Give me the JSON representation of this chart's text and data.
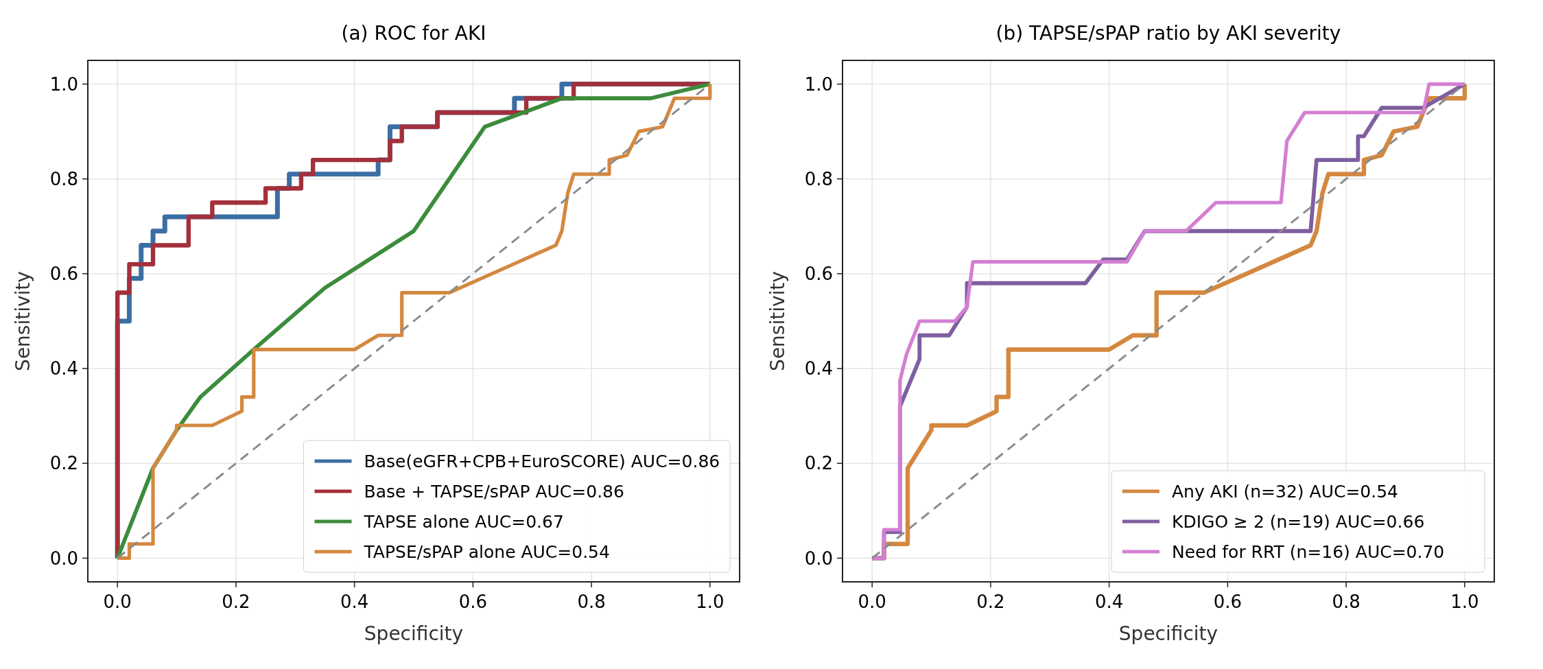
{
  "chart_data": [
    {
      "type": "line",
      "title": "(a)  ROC for AKI",
      "xlabel": "Specificity",
      "ylabel": "Sensitivity",
      "xlim": [
        -0.05,
        1.05
      ],
      "ylim": [
        -0.05,
        1.05
      ],
      "xticks": [
        {
          "value": 0,
          "label": "0.0"
        },
        {
          "value": 0.2,
          "label": "0.2"
        },
        {
          "value": 0.4,
          "label": "0.4"
        },
        {
          "value": 0.6,
          "label": "0.6"
        },
        {
          "value": 0.8,
          "label": "0.8"
        },
        {
          "value": 1,
          "label": "1.0"
        }
      ],
      "yticks": [
        {
          "value": 0,
          "label": "0.0"
        },
        {
          "value": 0.2,
          "label": "0.2"
        },
        {
          "value": 0.4,
          "label": "0.4"
        },
        {
          "value": 0.6,
          "label": "0.6"
        },
        {
          "value": 0.8,
          "label": "0.8"
        },
        {
          "value": 1,
          "label": "1.0"
        }
      ],
      "grid": true,
      "legend": "bottom right",
      "marker": "none",
      "series": [
        {
          "name": "Base(eGFR+CPB+EuroSCORE) AUC=0.86",
          "color": "#3b6ea5",
          "x": [
            0,
            0,
            0.02,
            0.02,
            0.04,
            0.04,
            0.06,
            0.06,
            0.08,
            0.08,
            0.27,
            0.27,
            0.29,
            0.29,
            0.44,
            0.44,
            0.46,
            0.46,
            0.54,
            0.54,
            0.67,
            0.67,
            0.75,
            0.75,
            1
          ],
          "values": [
            0,
            0.5,
            0.5,
            0.59,
            0.59,
            0.66,
            0.66,
            0.69,
            0.69,
            0.72,
            0.72,
            0.78,
            0.78,
            0.81,
            0.81,
            0.84,
            0.84,
            0.91,
            0.91,
            0.94,
            0.94,
            0.97,
            0.97,
            1,
            1
          ]
        },
        {
          "name": "Base + TAPSE/sPAP AUC=0.86",
          "color": "#a3303c",
          "x": [
            0,
            0,
            0.02,
            0.02,
            0.06,
            0.06,
            0.12,
            0.12,
            0.16,
            0.16,
            0.25,
            0.25,
            0.31,
            0.31,
            0.33,
            0.33,
            0.46,
            0.46,
            0.48,
            0.48,
            0.54,
            0.54,
            0.69,
            0.69,
            0.77,
            0.77,
            1
          ],
          "values": [
            0,
            0.56,
            0.56,
            0.62,
            0.62,
            0.66,
            0.66,
            0.72,
            0.72,
            0.75,
            0.75,
            0.78,
            0.78,
            0.81,
            0.81,
            0.84,
            0.84,
            0.88,
            0.88,
            0.91,
            0.91,
            0.94,
            0.94,
            0.97,
            0.97,
            1,
            1
          ]
        },
        {
          "name": "TAPSE alone AUC=0.67",
          "color": "#3b8c3b",
          "x": [
            0,
            0.06,
            0.1,
            0.14,
            0.23,
            0.35,
            0.5,
            0.62,
            0.75,
            0.9,
            1
          ],
          "values": [
            0,
            0.19,
            0.27,
            0.34,
            0.44,
            0.57,
            0.69,
            0.91,
            0.97,
            0.97,
            1
          ]
        },
        {
          "name": "TAPSE/sPAP alone AUC=0.54",
          "color": "#d4883f",
          "x": [
            0,
            0.02,
            0.02,
            0.06,
            0.06,
            0.1,
            0.1,
            0.16,
            0.21,
            0.21,
            0.23,
            0.23,
            0.4,
            0.44,
            0.48,
            0.48,
            0.56,
            0.74,
            0.75,
            0.76,
            0.77,
            0.83,
            0.83,
            0.86,
            0.88,
            0.92,
            0.93,
            0.94,
            1,
            1
          ],
          "values": [
            0,
            0,
            0.03,
            0.03,
            0.19,
            0.27,
            0.28,
            0.28,
            0.31,
            0.34,
            0.34,
            0.44,
            0.44,
            0.47,
            0.47,
            0.56,
            0.56,
            0.66,
            0.69,
            0.77,
            0.81,
            0.81,
            0.84,
            0.85,
            0.9,
            0.91,
            0.94,
            0.97,
            0.97,
            1
          ]
        },
        {
          "color": "#8c8c8c",
          "line_style": "dashed",
          "x": [
            0,
            1
          ],
          "values": [
            0,
            1
          ]
        }
      ]
    },
    {
      "type": "line",
      "title": "(b)  TAPSE/sPAP ratio by AKI severity",
      "xlabel": "Specificity",
      "ylabel": "Sensitivity",
      "xlim": [
        -0.05,
        1.05
      ],
      "ylim": [
        -0.05,
        1.05
      ],
      "xticks": [
        {
          "value": 0,
          "label": "0.0"
        },
        {
          "value": 0.2,
          "label": "0.2"
        },
        {
          "value": 0.4,
          "label": "0.4"
        },
        {
          "value": 0.6,
          "label": "0.6"
        },
        {
          "value": 0.8,
          "label": "0.8"
        },
        {
          "value": 1,
          "label": "1.0"
        }
      ],
      "yticks": [
        {
          "value": 0,
          "label": "0.0"
        },
        {
          "value": 0.2,
          "label": "0.2"
        },
        {
          "value": 0.4,
          "label": "0.4"
        },
        {
          "value": 0.6,
          "label": "0.6"
        },
        {
          "value": 0.8,
          "label": "0.8"
        },
        {
          "value": 1,
          "label": "1.0"
        }
      ],
      "grid": true,
      "legend": "bottom right",
      "marker": "none",
      "series": [
        {
          "name": "Any AKI (n=32) AUC=0.54",
          "color": "#d4883f",
          "x": [
            0,
            0.02,
            0.02,
            0.06,
            0.06,
            0.1,
            0.1,
            0.16,
            0.21,
            0.21,
            0.23,
            0.23,
            0.4,
            0.44,
            0.48,
            0.48,
            0.56,
            0.74,
            0.75,
            0.76,
            0.77,
            0.83,
            0.83,
            0.86,
            0.88,
            0.92,
            0.93,
            0.94,
            1,
            1
          ],
          "values": [
            0,
            0,
            0.03,
            0.03,
            0.19,
            0.27,
            0.28,
            0.28,
            0.31,
            0.34,
            0.34,
            0.44,
            0.44,
            0.47,
            0.47,
            0.56,
            0.56,
            0.66,
            0.69,
            0.77,
            0.81,
            0.81,
            0.84,
            0.85,
            0.9,
            0.91,
            0.94,
            0.97,
            0.97,
            1
          ]
        },
        {
          "name": "KDIGO ≥ 2 (n=19) AUC=0.66",
          "color": "#7e5fa0",
          "x": [
            0,
            0.02,
            0.02,
            0.047,
            0.047,
            0.08,
            0.08,
            0.13,
            0.16,
            0.16,
            0.36,
            0.39,
            0.43,
            0.46,
            0.74,
            0.75,
            0.82,
            0.82,
            0.83,
            0.86,
            0.93,
            1
          ],
          "values": [
            0,
            0,
            0.055,
            0.055,
            0.32,
            0.42,
            0.47,
            0.47,
            0.53,
            0.58,
            0.58,
            0.63,
            0.63,
            0.69,
            0.69,
            0.84,
            0.84,
            0.89,
            0.89,
            0.95,
            0.95,
            1
          ]
        },
        {
          "name": "Need for RRT (n=16) AUC=0.70",
          "color": "#d47fd2",
          "x": [
            0,
            0.02,
            0.02,
            0.047,
            0.047,
            0.058,
            0.08,
            0.14,
            0.16,
            0.17,
            0.43,
            0.46,
            0.53,
            0.58,
            0.69,
            0.7,
            0.73,
            0.93,
            0.94,
            1
          ],
          "values": [
            0,
            0,
            0.06,
            0.06,
            0.375,
            0.43,
            0.5,
            0.5,
            0.53,
            0.625,
            0.625,
            0.69,
            0.69,
            0.75,
            0.75,
            0.88,
            0.94,
            0.94,
            1,
            1
          ]
        },
        {
          "color": "#8c8c8c",
          "line_style": "dashed",
          "x": [
            0,
            1
          ],
          "values": [
            0,
            1
          ]
        }
      ]
    }
  ]
}
